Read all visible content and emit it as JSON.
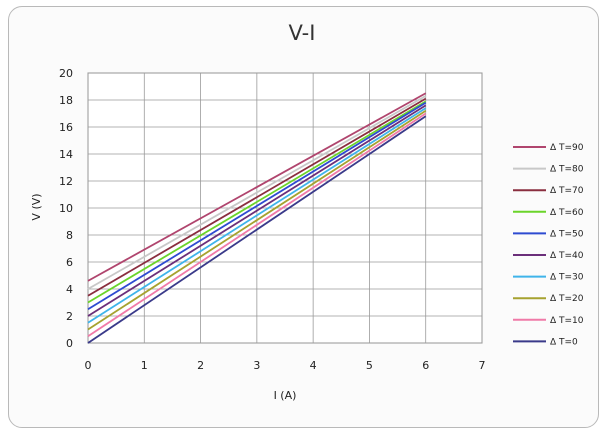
{
  "chart_data": {
    "type": "line",
    "title": "V-I",
    "xlabel": "I (A)",
    "ylabel": "V (V)",
    "xlim": [
      0,
      7
    ],
    "ylim": [
      0,
      20
    ],
    "x_ticks": [
      0,
      1,
      2,
      3,
      4,
      5,
      6,
      7
    ],
    "y_ticks": [
      0,
      2,
      4,
      6,
      8,
      10,
      12,
      14,
      16,
      18,
      20
    ],
    "grid": true,
    "legend_position": "right",
    "series": [
      {
        "name": "Δ T=90",
        "color": "#b0456e",
        "x": [
          0,
          6
        ],
        "values": [
          4.6,
          18.5
        ]
      },
      {
        "name": "Δ T=80",
        "color": "#c8c8c8",
        "x": [
          0,
          6
        ],
        "values": [
          4.0,
          18.3
        ]
      },
      {
        "name": "Δ T=70",
        "color": "#8a2e3f",
        "x": [
          0,
          6
        ],
        "values": [
          3.5,
          18.1
        ]
      },
      {
        "name": "Δ T=60",
        "color": "#6bd42a",
        "x": [
          0,
          6
        ],
        "values": [
          3.0,
          17.9
        ]
      },
      {
        "name": "Δ T=50",
        "color": "#2e4bd1",
        "x": [
          0,
          6
        ],
        "values": [
          2.5,
          17.8
        ]
      },
      {
        "name": "Δ T=40",
        "color": "#6b2f7a",
        "x": [
          0,
          6
        ],
        "values": [
          2.0,
          17.6
        ]
      },
      {
        "name": "Δ T=30",
        "color": "#3fb4ea",
        "x": [
          0,
          6
        ],
        "values": [
          1.5,
          17.4
        ]
      },
      {
        "name": "Δ T=20",
        "color": "#a6a22f",
        "x": [
          0,
          6
        ],
        "values": [
          1.0,
          17.2
        ]
      },
      {
        "name": "Δ T=10",
        "color": "#f07aa8",
        "x": [
          0,
          6
        ],
        "values": [
          0.5,
          17.0
        ]
      },
      {
        "name": "Δ T=0",
        "color": "#3a3a8a",
        "x": [
          0,
          6
        ],
        "values": [
          0.0,
          16.8
        ]
      }
    ]
  }
}
